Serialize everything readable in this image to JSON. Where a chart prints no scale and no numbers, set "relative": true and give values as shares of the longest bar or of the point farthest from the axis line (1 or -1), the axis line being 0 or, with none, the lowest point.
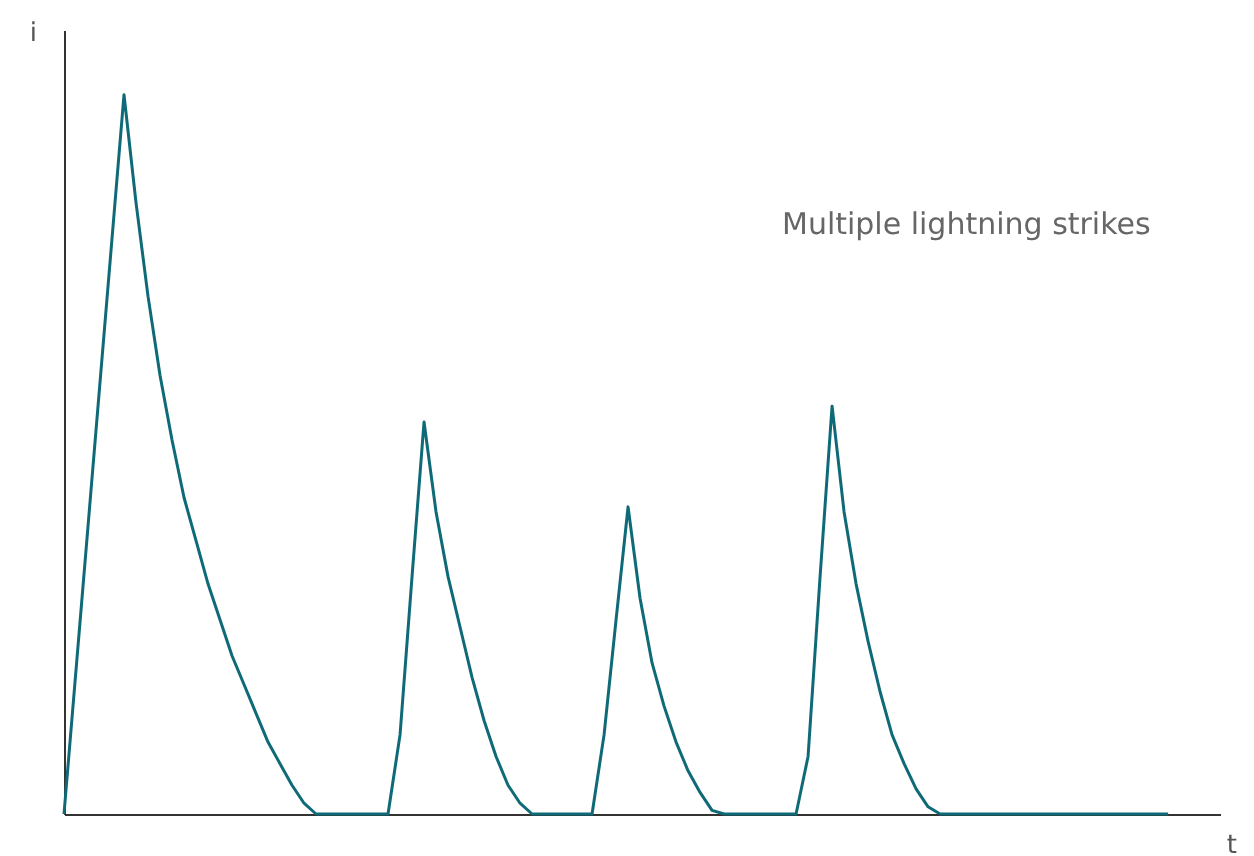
{
  "chart_data": {
    "type": "line",
    "relative": true,
    "xlabel": "t",
    "ylabel": "i",
    "annotations": [
      "Multiple lightning strikes"
    ],
    "tick_labels": false,
    "marker": "none",
    "line_style": "solid",
    "categories": [
      null,
      null,
      null,
      null,
      null,
      null,
      null,
      null,
      null,
      null,
      null,
      null,
      null,
      null,
      null,
      null,
      null,
      null,
      null,
      null,
      null,
      null,
      null,
      null,
      null,
      null,
      null,
      null,
      null,
      null,
      null,
      null,
      null,
      null,
      null,
      null,
      null,
      null,
      null,
      null,
      null,
      null,
      null,
      null,
      null,
      null,
      null,
      null,
      null,
      null,
      null,
      null,
      null,
      null,
      null,
      null,
      null,
      null,
      null,
      null,
      null,
      null,
      null,
      null,
      null,
      null,
      null,
      null,
      null,
      null,
      null,
      null,
      null,
      null,
      null,
      null,
      null,
      null,
      null,
      null,
      null,
      null,
      null,
      null,
      null,
      null,
      null,
      null,
      null,
      null,
      null,
      null,
      null
    ],
    "series": [
      {
        "color": "#0f6a78",
        "values": [
          0,
          0.2,
          0.4,
          0.6,
          0.8,
          1.0,
          0.85,
          0.72,
          0.61,
          0.52,
          0.44,
          0.38,
          0.32,
          0.27,
          0.22,
          0.18,
          0.14,
          0.1,
          0.07,
          0.04,
          0.015,
          0,
          0,
          0,
          0,
          0,
          0,
          0,
          0.11,
          0.33,
          0.545,
          0.42,
          0.33,
          0.26,
          0.19,
          0.13,
          0.08,
          0.04,
          0.015,
          0,
          0,
          0,
          0,
          0,
          0,
          0.11,
          0.27,
          0.427,
          0.3,
          0.21,
          0.15,
          0.1,
          0.06,
          0.03,
          0.005,
          0,
          0,
          0,
          0,
          0,
          0,
          0,
          0.08,
          0.33,
          0.567,
          0.42,
          0.32,
          0.24,
          0.17,
          0.11,
          0.07,
          0.035,
          0.01,
          0,
          0,
          0,
          0,
          0,
          0,
          0,
          0,
          0,
          0,
          0,
          0,
          0,
          0,
          0,
          0,
          0,
          0,
          0,
          0
        ]
      }
    ]
  }
}
